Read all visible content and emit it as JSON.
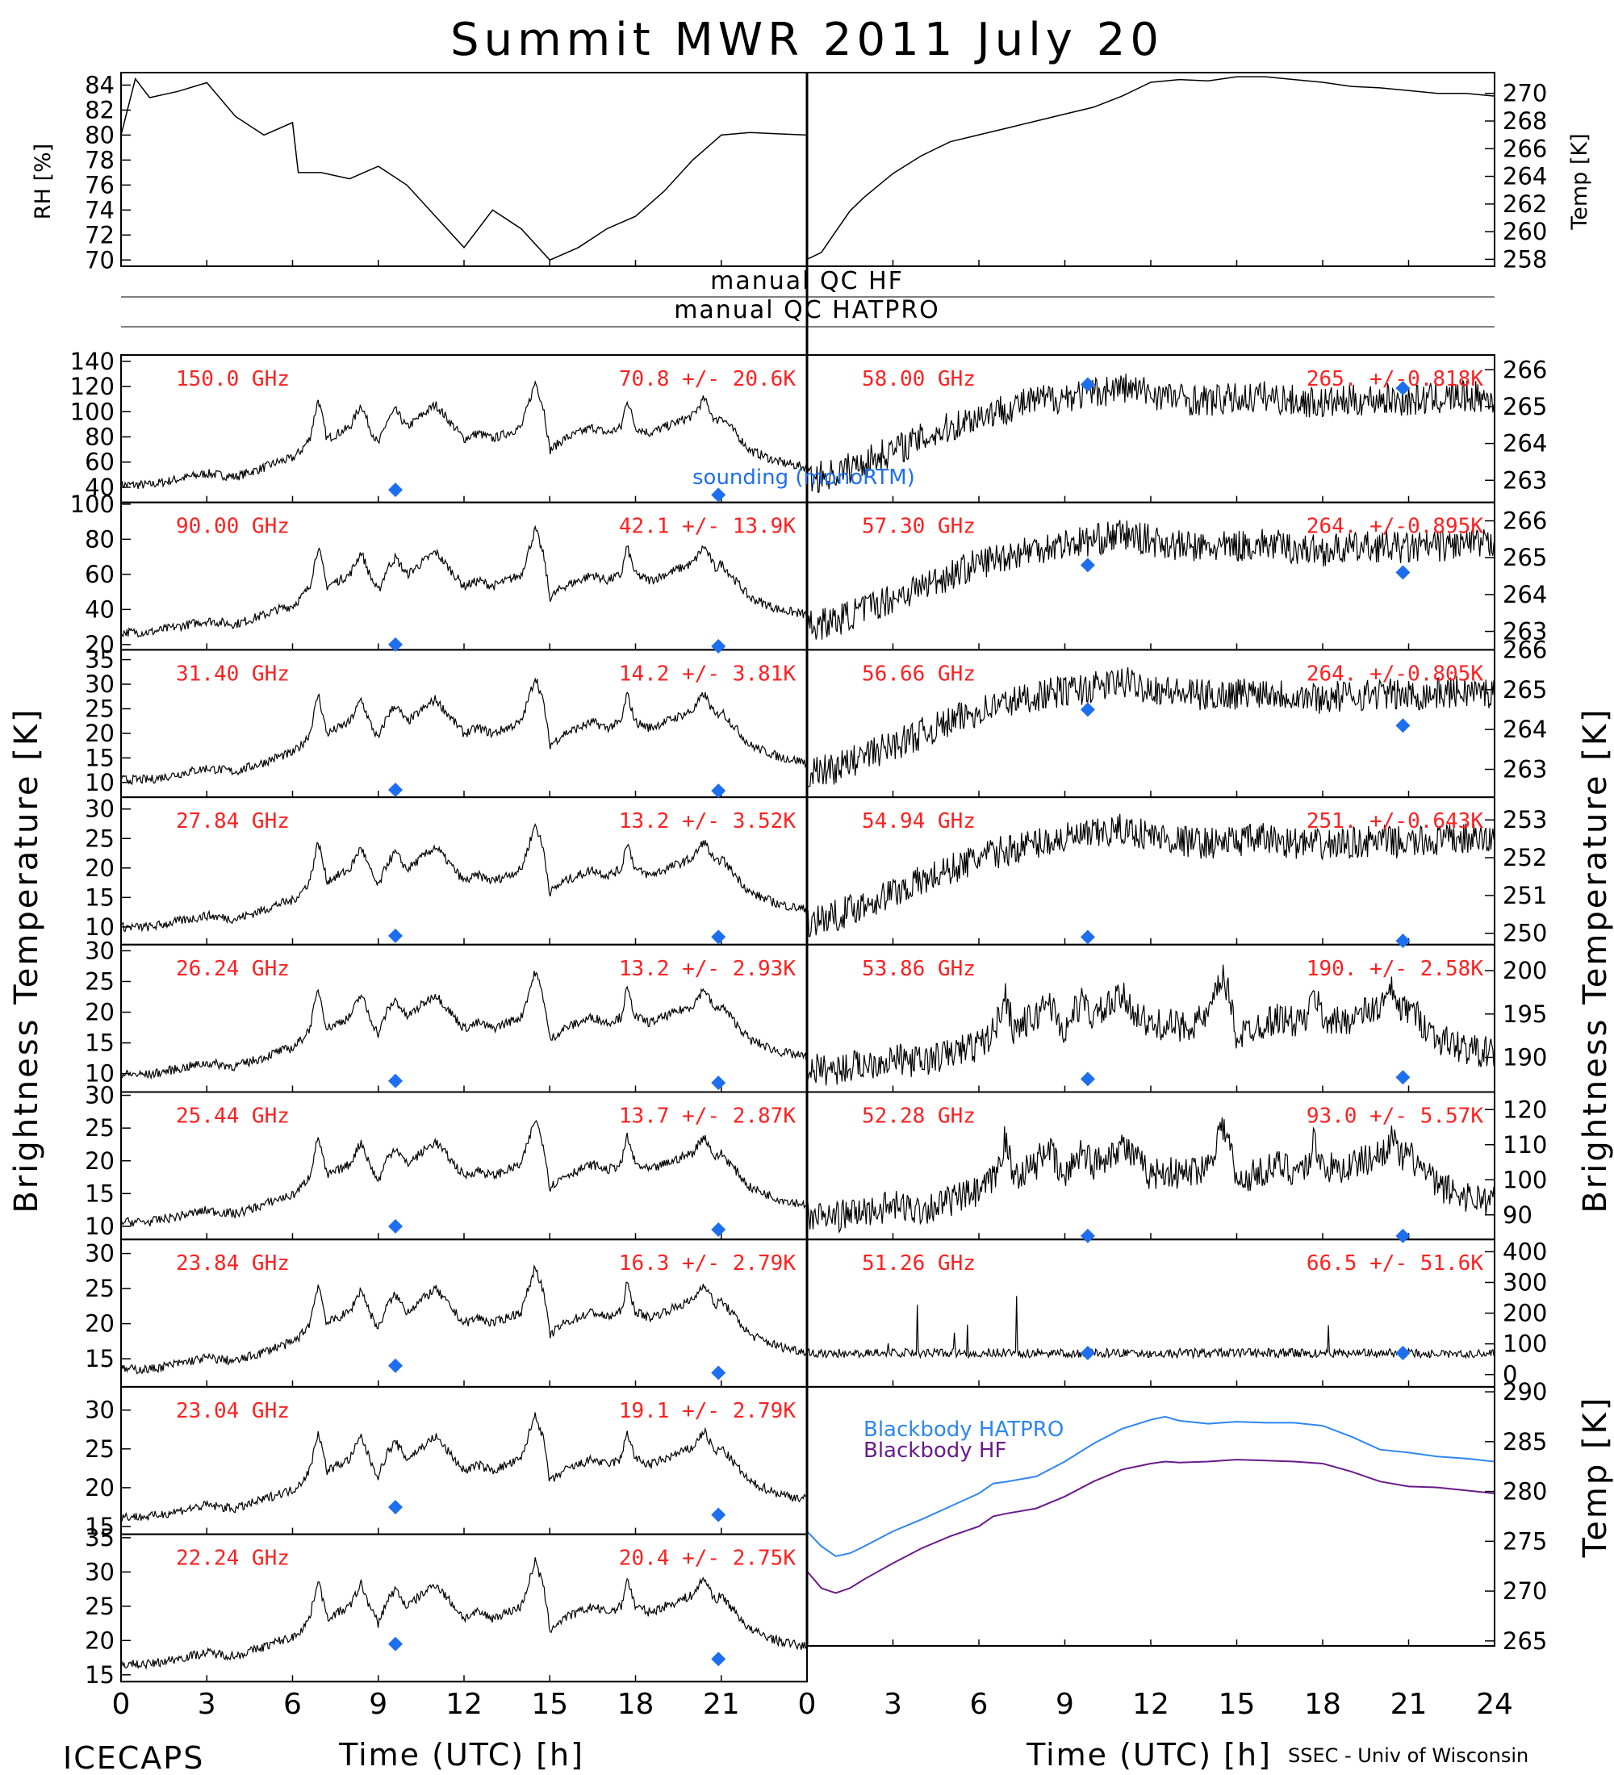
{
  "title": "Summit MWR 2011 July 20",
  "labels": {
    "left_ylabel": "Brightness Temperature [K]",
    "right_ylabel": "Brightness Temperature [K]",
    "xlabel_left": "Time (UTC) [h]",
    "xlabel_right": "Time (UTC) [h]",
    "footer_left": "ICECAPS",
    "footer_right": "SSEC - Univ of Wisconsin",
    "qc_hf": "manual QC HF",
    "qc_hatpro": "manual QC HATPRO",
    "sounding_legend": "sounding (monoRTM)"
  },
  "colors": {
    "annotation": "#ff2020",
    "sounding": "#1e6ff0",
    "blackbody_hatpro": "#2f86f0",
    "blackbody_hf": "#6a1b8a",
    "trace": "#000000"
  },
  "x_ticks": [
    "0",
    "3",
    "6",
    "9",
    "12",
    "15",
    "18",
    "21",
    "24"
  ],
  "chart_data": [
    {
      "id": "rh",
      "type": "line",
      "ylabel": "RH [%]",
      "ylim": [
        69.5,
        85
      ],
      "yticks": [
        70,
        72,
        74,
        76,
        78,
        80,
        82,
        84
      ],
      "x": [
        0,
        0.5,
        1,
        2,
        3,
        4,
        5,
        6,
        6.2,
        7,
        8,
        9,
        10,
        11,
        12,
        13,
        14,
        15,
        16,
        17,
        18,
        19,
        20,
        21,
        22,
        23,
        24
      ],
      "y": [
        80,
        84.5,
        83,
        83.5,
        84.2,
        81.5,
        80,
        81,
        77,
        77,
        76.5,
        77.5,
        76,
        73.5,
        71,
        74,
        72.5,
        70,
        71,
        72.5,
        73.5,
        75.5,
        78,
        80,
        80.2,
        80.1,
        80
      ]
    },
    {
      "id": "temp",
      "type": "line",
      "ylabel": "Temp [K]",
      "ylim": [
        257.5,
        271.5
      ],
      "yticks": [
        258,
        260,
        262,
        264,
        266,
        268,
        270
      ],
      "x": [
        0,
        0.5,
        1,
        1.5,
        2,
        3,
        4,
        5,
        6,
        7,
        8,
        9,
        10,
        11,
        12,
        13,
        14,
        15,
        16,
        17,
        18,
        19,
        20,
        21,
        22,
        23,
        24
      ],
      "y": [
        258,
        258.5,
        260,
        261.5,
        262.5,
        264.2,
        265.5,
        266.5,
        267,
        267.5,
        268,
        268.5,
        269,
        269.8,
        270.8,
        271,
        270.9,
        271.2,
        271.2,
        271,
        270.8,
        270.5,
        270.4,
        270.2,
        270,
        270,
        269.8
      ]
    },
    {
      "id": "p150",
      "type": "line",
      "freq": "150.0 GHz",
      "stat": "70.8 +/-  20.6K",
      "ylim": [
        28,
        145
      ],
      "yticks": [
        40,
        60,
        80,
        100,
        120,
        140
      ],
      "sounding": [
        [
          9.6,
          38
        ],
        [
          20.9,
          34
        ]
      ]
    },
    {
      "id": "p90",
      "type": "line",
      "freq": "90.00 GHz",
      "stat": "42.1 +/-  13.9K",
      "ylim": [
        17,
        101
      ],
      "yticks": [
        20,
        40,
        60,
        80,
        100
      ],
      "sounding": [
        [
          9.6,
          20
        ],
        [
          20.9,
          19
        ]
      ]
    },
    {
      "id": "p314",
      "type": "line",
      "freq": "31.40 GHz",
      "stat": "14.2 +/-  3.81K",
      "ylim": [
        7,
        37
      ],
      "yticks": [
        10,
        15,
        20,
        25,
        30,
        35
      ],
      "sounding": [
        [
          9.6,
          8.5
        ],
        [
          20.9,
          8.3
        ]
      ]
    },
    {
      "id": "p2784",
      "type": "line",
      "freq": "27.84 GHz",
      "stat": "13.2 +/-  3.52K",
      "ylim": [
        7,
        32
      ],
      "yticks": [
        10,
        15,
        20,
        25,
        30
      ],
      "sounding": [
        [
          9.6,
          8.5
        ],
        [
          20.9,
          8.3
        ]
      ]
    },
    {
      "id": "p2624",
      "type": "line",
      "freq": "26.24 GHz",
      "stat": "13.2 +/-  2.93K",
      "ylim": [
        7,
        31
      ],
      "yticks": [
        10,
        15,
        20,
        25,
        30
      ],
      "sounding": [
        [
          9.6,
          8.8
        ],
        [
          20.9,
          8.5
        ]
      ]
    },
    {
      "id": "p2544",
      "type": "line",
      "freq": "25.44 GHz",
      "stat": "13.7 +/-  2.87K",
      "ylim": [
        8,
        30.5
      ],
      "yticks": [
        10,
        15,
        20,
        25,
        30
      ],
      "sounding": [
        [
          9.6,
          10
        ],
        [
          20.9,
          9.5
        ]
      ]
    },
    {
      "id": "p2384",
      "type": "line",
      "freq": "23.84 GHz",
      "stat": "16.3 +/-  2.79K",
      "ylim": [
        11,
        32
      ],
      "yticks": [
        15,
        20,
        25,
        30
      ],
      "sounding": [
        [
          9.6,
          14
        ],
        [
          20.9,
          13
        ]
      ]
    },
    {
      "id": "p2304",
      "type": "line",
      "freq": "23.04 GHz",
      "stat": "19.1 +/-  2.79K",
      "ylim": [
        14,
        33
      ],
      "yticks": [
        15,
        20,
        25,
        30
      ],
      "sounding": [
        [
          9.6,
          17.5
        ],
        [
          20.9,
          16.5
        ]
      ]
    },
    {
      "id": "p2224",
      "type": "line",
      "freq": "22.24 GHz",
      "stat": "20.4 +/-  2.75K",
      "ylim": [
        14,
        35.5
      ],
      "yticks": [
        15,
        20,
        25,
        30,
        35
      ],
      "sounding": [
        [
          9.6,
          19.5
        ],
        [
          20.9,
          17.3
        ]
      ]
    },
    {
      "id": "p5800",
      "type": "line",
      "freq": "58.00 GHz",
      "stat": "265. +/-0.818K",
      "ylim": [
        262.4,
        266.4
      ],
      "yticks": [
        263,
        264,
        265,
        266
      ],
      "sounding": [
        [
          9.8,
          265.6
        ],
        [
          20.8,
          265.5
        ]
      ]
    },
    {
      "id": "p5730",
      "type": "line",
      "freq": "57.30 GHz",
      "stat": "264. +/-0.895K",
      "ylim": [
        262.5,
        266.5
      ],
      "yticks": [
        263,
        264,
        265,
        266
      ],
      "sounding": [
        [
          9.8,
          264.8
        ],
        [
          20.8,
          264.6
        ]
      ]
    },
    {
      "id": "p5666",
      "type": "line",
      "freq": "56.66 GHz",
      "stat": "264. +/-0.805K",
      "ylim": [
        262.3,
        266
      ],
      "yticks": [
        263,
        264,
        265,
        266
      ],
      "sounding": [
        [
          9.8,
          264.5
        ],
        [
          20.8,
          264.1
        ]
      ]
    },
    {
      "id": "p5494",
      "type": "line",
      "freq": "54.94 GHz",
      "stat": "251. +/-0.643K",
      "ylim": [
        249.7,
        253.6
      ],
      "yticks": [
        250,
        251,
        252,
        253
      ],
      "sounding": [
        [
          9.8,
          249.9
        ],
        [
          20.8,
          249.8
        ]
      ]
    },
    {
      "id": "p5386",
      "type": "line",
      "freq": "53.86 GHz",
      "stat": "190. +/-  2.58K",
      "ylim": [
        186,
        203
      ],
      "yticks": [
        190,
        195,
        200
      ],
      "sounding": [
        [
          9.8,
          187.5
        ],
        [
          20.8,
          187.7
        ]
      ]
    },
    {
      "id": "p5228",
      "type": "line",
      "freq": "52.28 GHz",
      "stat": "93.0 +/-  5.57K",
      "ylim": [
        83,
        125
      ],
      "yticks": [
        90,
        100,
        110,
        120
      ],
      "sounding": [
        [
          9.8,
          84
        ],
        [
          20.8,
          84
        ]
      ]
    },
    {
      "id": "p5126",
      "type": "line",
      "freq": "51.26 GHz",
      "stat": "66.5 +/-  51.6K",
      "ylim": [
        -40,
        440
      ],
      "yticks": [
        0,
        100,
        200,
        300,
        400
      ],
      "sounding": [
        [
          9.8,
          70
        ],
        [
          20.8,
          70
        ]
      ]
    },
    {
      "id": "bb",
      "type": "line",
      "ylabel": "Temp [K]",
      "ylim": [
        264.5,
        290.5
      ],
      "yticks": [
        265,
        270,
        275,
        280,
        285,
        290
      ],
      "series": [
        {
          "name": "Blackbody HATPRO",
          "x": [
            0,
            0.5,
            1,
            1.5,
            2,
            3,
            4,
            5,
            6,
            6.5,
            7,
            8,
            9,
            10,
            11,
            12,
            12.5,
            13,
            14,
            15,
            16,
            17,
            18,
            19,
            20,
            21,
            22,
            23,
            24
          ],
          "y": [
            276,
            274.5,
            273.5,
            273.8,
            274.5,
            276,
            277.2,
            278.5,
            279.8,
            280.8,
            281,
            281.5,
            283,
            284.8,
            286.3,
            287.2,
            287.5,
            287.1,
            286.8,
            287,
            286.9,
            286.9,
            286.6,
            285.5,
            284.2,
            283.9,
            283.5,
            283.3,
            283
          ]
        },
        {
          "name": "Blackbody HF",
          "x": [
            0,
            0.5,
            1,
            1.5,
            2,
            3,
            4,
            5,
            6,
            6.5,
            7,
            8,
            9,
            10,
            11,
            12,
            12.5,
            13,
            14,
            15,
            16,
            17,
            18,
            19,
            20,
            21,
            22,
            23,
            24
          ],
          "y": [
            272,
            270.3,
            269.8,
            270.3,
            271.2,
            272.8,
            274.3,
            275.5,
            276.5,
            277.5,
            277.8,
            278.3,
            279.5,
            281,
            282.2,
            282.8,
            283,
            282.9,
            283,
            283.2,
            283.1,
            283,
            282.8,
            282,
            281,
            280.5,
            280.4,
            280.1,
            279.8
          ]
        }
      ]
    }
  ]
}
